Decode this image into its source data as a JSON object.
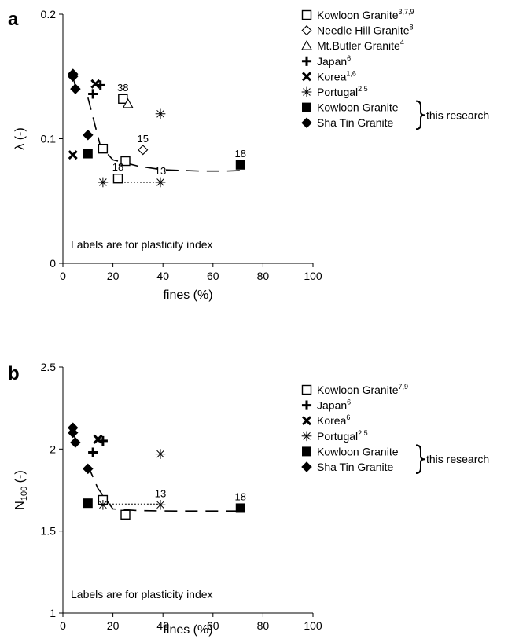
{
  "chart_data": [
    {
      "panel_label": "a",
      "type": "scatter",
      "xlabel": "fines (%)",
      "ylabel": "λ (-)",
      "xlim": [
        0,
        100
      ],
      "ylim": [
        0,
        0.2
      ],
      "xticks": [
        "0",
        "20",
        "40",
        "60",
        "80",
        "100"
      ],
      "yticks": [
        "0",
        "0.1",
        "0.2"
      ],
      "xtick_values": [
        0,
        20,
        40,
        60,
        80,
        100
      ],
      "ytick_values": [
        0,
        0.1,
        0.2
      ],
      "annotation": "Labels are for plasticity index",
      "legend_placement": "top-right",
      "bracket_label": "this research",
      "series": [
        {
          "name": "Kowloon Granite",
          "sup": "3,7,9",
          "marker": "open-square",
          "points": [
            {
              "x": 16,
              "y": 0.092
            },
            {
              "x": 22,
              "y": 0.068
            },
            {
              "x": 24,
              "y": 0.132
            },
            {
              "x": 25,
              "y": 0.082
            }
          ]
        },
        {
          "name": "Needle Hill Granite",
          "sup": "8",
          "marker": "open-diamond",
          "points": [
            {
              "x": 32,
              "y": 0.091
            }
          ]
        },
        {
          "name": "Mt.Butler Granite",
          "sup": "4",
          "marker": "open-triangle",
          "points": [
            {
              "x": 26,
              "y": 0.128
            }
          ]
        },
        {
          "name": "Japan",
          "sup": "6",
          "marker": "plus",
          "points": [
            {
              "x": 12,
              "y": 0.136
            },
            {
              "x": 15,
              "y": 0.143
            }
          ]
        },
        {
          "name": "Korea",
          "sup": "1,6",
          "marker": "cross",
          "points": [
            {
              "x": 4,
              "y": 0.087
            },
            {
              "x": 13,
              "y": 0.144
            }
          ]
        },
        {
          "name": "Portugal",
          "sup": "2,5",
          "marker": "asterisk",
          "points": [
            {
              "x": 16,
              "y": 0.065
            },
            {
              "x": 39,
              "y": 0.065
            },
            {
              "x": 39,
              "y": 0.12
            }
          ]
        },
        {
          "name": "Kowloon Granite",
          "sup": "",
          "marker": "filled-square",
          "this_research": true,
          "points": [
            {
              "x": 10,
              "y": 0.088
            },
            {
              "x": 71,
              "y": 0.079
            }
          ]
        },
        {
          "name": "Sha Tin Granite",
          "sup": "",
          "marker": "filled-diamond",
          "this_research": true,
          "points": [
            {
              "x": 4,
              "y": 0.152
            },
            {
              "x": 4,
              "y": 0.15
            },
            {
              "x": 5,
              "y": 0.14
            },
            {
              "x": 10,
              "y": 0.103
            }
          ]
        }
      ],
      "point_labels": [
        {
          "text": "38",
          "x": 24,
          "y": 0.132
        },
        {
          "text": "15",
          "x": 32,
          "y": 0.091
        },
        {
          "text": "18",
          "x": 22,
          "y": 0.068
        },
        {
          "text": "13",
          "x": 39,
          "y": 0.065
        },
        {
          "text": "18",
          "x": 71,
          "y": 0.079
        }
      ],
      "dashed_trend": [
        {
          "x": 10,
          "y": 0.133
        },
        {
          "x": 15,
          "y": 0.094
        },
        {
          "x": 20,
          "y": 0.083
        },
        {
          "x": 30,
          "y": 0.078
        },
        {
          "x": 40,
          "y": 0.075
        },
        {
          "x": 55,
          "y": 0.074
        },
        {
          "x": 65,
          "y": 0.074
        },
        {
          "x": 72,
          "y": 0.0745
        }
      ],
      "dotted_line": [
        {
          "x": 22,
          "y": 0.065
        },
        {
          "x": 39,
          "y": 0.065
        }
      ],
      "solid_line": [
        {
          "x": 4,
          "y": 0.152
        },
        {
          "x": 5,
          "y": 0.14
        }
      ]
    },
    {
      "panel_label": "b",
      "type": "scatter",
      "xlabel": "fines (%)",
      "ylabel": "N",
      "ylabel_sub": "100",
      "ylabel_suffix": " (-)",
      "xlim": [
        0,
        100
      ],
      "ylim": [
        1,
        2.5
      ],
      "xticks": [
        "0",
        "20",
        "40",
        "60",
        "80",
        "100"
      ],
      "yticks": [
        "1",
        "1.5",
        "2",
        "2.5"
      ],
      "xtick_values": [
        0,
        20,
        40,
        60,
        80,
        100
      ],
      "ytick_values": [
        1,
        1.5,
        2,
        2.5
      ],
      "annotation": "Labels are for plasticity index",
      "legend_placement": "top-right",
      "bracket_label": "this research",
      "series": [
        {
          "name": "Kowloon Granite",
          "sup": "7,9",
          "marker": "open-square",
          "points": [
            {
              "x": 16,
              "y": 1.69
            },
            {
              "x": 25,
              "y": 1.6
            }
          ]
        },
        {
          "name": "Japan",
          "sup": "6",
          "marker": "plus",
          "points": [
            {
              "x": 12,
              "y": 1.98
            },
            {
              "x": 16,
              "y": 2.05
            }
          ]
        },
        {
          "name": "Korea",
          "sup": "6",
          "marker": "cross",
          "points": [
            {
              "x": 14,
              "y": 2.06
            }
          ]
        },
        {
          "name": "Portugal",
          "sup": "2,5",
          "marker": "asterisk",
          "points": [
            {
              "x": 16,
              "y": 1.66
            },
            {
              "x": 39,
              "y": 1.66
            },
            {
              "x": 39,
              "y": 1.97
            }
          ]
        },
        {
          "name": "Kowloon Granite",
          "sup": "",
          "marker": "filled-square",
          "this_research": true,
          "points": [
            {
              "x": 10,
              "y": 1.67
            },
            {
              "x": 71,
              "y": 1.64
            }
          ]
        },
        {
          "name": "Sha Tin Granite",
          "sup": "",
          "marker": "filled-diamond",
          "this_research": true,
          "points": [
            {
              "x": 4,
              "y": 2.13
            },
            {
              "x": 4,
              "y": 2.1
            },
            {
              "x": 5,
              "y": 2.04
            },
            {
              "x": 10,
              "y": 1.88
            }
          ]
        }
      ],
      "point_labels": [
        {
          "text": "13",
          "x": 39,
          "y": 1.66
        },
        {
          "text": "18",
          "x": 71,
          "y": 1.64
        }
      ],
      "dashed_trend": [
        {
          "x": 10,
          "y": 1.9
        },
        {
          "x": 14,
          "y": 1.76
        },
        {
          "x": 20,
          "y": 1.635
        },
        {
          "x": 30,
          "y": 1.625
        },
        {
          "x": 45,
          "y": 1.622
        },
        {
          "x": 60,
          "y": 1.622
        },
        {
          "x": 72,
          "y": 1.622
        }
      ],
      "dotted_line": [
        {
          "x": 16,
          "y": 1.665
        },
        {
          "x": 39,
          "y": 1.665
        }
      ],
      "solid_line": [
        {
          "x": 4,
          "y": 2.13
        },
        {
          "x": 5,
          "y": 2.04
        }
      ]
    }
  ]
}
